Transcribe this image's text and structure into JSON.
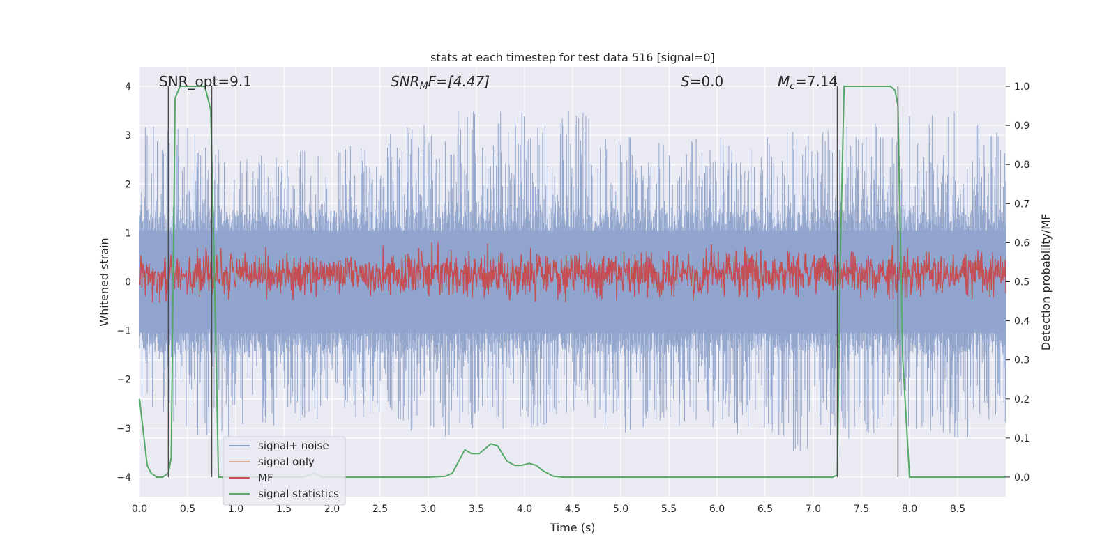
{
  "chart_data": {
    "type": "line",
    "title": "stats at each timestep for test data 516 [signal=0]",
    "xlabel": "Time (s)",
    "ylabel_left": "Whitened strain",
    "ylabel_right": "Detection probability/MF",
    "xlim": [
      0.0,
      9.0
    ],
    "ylim_left": [
      -4.4,
      4.4
    ],
    "ylim_right": [
      -0.05,
      1.05
    ],
    "xticks": [
      "0.0",
      "0.5",
      "1.0",
      "1.5",
      "2.0",
      "2.5",
      "3.0",
      "3.5",
      "4.0",
      "4.5",
      "5.0",
      "5.5",
      "6.0",
      "6.5",
      "7.0",
      "7.5",
      "8.0",
      "8.5"
    ],
    "xtick_values": [
      0,
      0.5,
      1,
      1.5,
      2,
      2.5,
      3,
      3.5,
      4,
      4.5,
      5,
      5.5,
      6,
      6.5,
      7,
      7.5,
      8,
      8.5
    ],
    "yticks_left": [
      "4",
      "3",
      "2",
      "1",
      "0",
      "−1",
      "−2",
      "−3",
      "−4"
    ],
    "ytick_values_left": [
      4,
      3,
      2,
      1,
      0,
      -1,
      -2,
      -3,
      -4
    ],
    "yticks_right": [
      "1.0",
      "0.9",
      "0.8",
      "0.7",
      "0.6",
      "0.5",
      "0.4",
      "0.3",
      "0.2",
      "0.1",
      "0.0"
    ],
    "ytick_values_right": [
      1.0,
      0.9,
      0.8,
      0.7,
      0.6,
      0.5,
      0.4,
      0.3,
      0.2,
      0.1,
      0.0
    ],
    "annotations": {
      "snr_opt": "SNR_opt=9.1",
      "snr_mf_main": "SNR",
      "snr_mf_sub": "M",
      "snr_mf_rest": "F=[4.47]",
      "s_main": "S",
      "s_rest": "=0.0",
      "mc_main": "M",
      "mc_sub": "c",
      "mc_rest": "=7.14"
    },
    "legend": {
      "placement": "lower-left",
      "entries": [
        {
          "label": "signal+ noise",
          "color": "#8da0cb"
        },
        {
          "label": "signal only",
          "color": "#e9a987"
        },
        {
          "label": "MF",
          "color": "#c44e52"
        },
        {
          "label": "signal statistics",
          "color": "#55a868"
        }
      ]
    },
    "noise_envelope": {
      "color": "#8fa3cc",
      "x": [
        0.0,
        0.5,
        1.0,
        1.5,
        2.0,
        2.5,
        3.0,
        3.3,
        3.5,
        4.0,
        4.5,
        5.0,
        5.5,
        6.0,
        6.5,
        6.8,
        7.0,
        7.5,
        8.0,
        8.5,
        9.0
      ],
      "upper": [
        3.2,
        3.2,
        2.5,
        2.7,
        2.8,
        3.0,
        3.3,
        3.6,
        3.7,
        3.5,
        3.6,
        3.0,
        2.9,
        3.0,
        3.0,
        3.3,
        3.2,
        3.3,
        3.4,
        3.6,
        3.0
      ],
      "lower": [
        -2.5,
        -3.1,
        -3.3,
        -2.9,
        -2.8,
        -2.8,
        -3.2,
        -3.2,
        -3.0,
        -3.1,
        -3.0,
        -3.2,
        -2.9,
        -3.2,
        -3.0,
        -3.7,
        -3.3,
        -3.2,
        -3.0,
        -3.4,
        -2.9
      ],
      "seed": 516,
      "samples": 1800
    },
    "mf_series": {
      "color": "#c44e52",
      "baseline": 0.52,
      "spread": 0.035,
      "seed": 99,
      "samples": 1800
    },
    "signal_statistics": {
      "color": "#55a868",
      "x": [
        0.0,
        0.08,
        0.12,
        0.18,
        0.24,
        0.3,
        0.33,
        0.37,
        0.42,
        0.5,
        0.6,
        0.68,
        0.74,
        0.78,
        0.82,
        0.9,
        1.0,
        1.2,
        1.5,
        1.7,
        1.82,
        1.9,
        2.0,
        2.5,
        3.0,
        3.18,
        3.25,
        3.38,
        3.45,
        3.53,
        3.65,
        3.72,
        3.82,
        3.9,
        3.97,
        4.05,
        4.12,
        4.2,
        4.3,
        4.4,
        4.6,
        5.0,
        6.0,
        6.8,
        7.2,
        7.25,
        7.28,
        7.32,
        7.4,
        7.8,
        7.85,
        7.88,
        7.93,
        7.96,
        8.0,
        8.2,
        8.5,
        9.0
      ],
      "y": [
        0.2,
        0.03,
        0.01,
        0.0,
        0.0,
        0.01,
        0.05,
        0.97,
        1.0,
        1.0,
        1.0,
        1.0,
        0.94,
        0.5,
        0.0,
        0.0,
        0.0,
        0.0,
        0.0,
        0.0,
        0.01,
        0.0,
        0.0,
        0.0,
        0.0,
        0.002,
        0.01,
        0.07,
        0.06,
        0.06,
        0.085,
        0.08,
        0.04,
        0.03,
        0.03,
        0.035,
        0.03,
        0.015,
        0.002,
        0.0,
        0.0,
        0.0,
        0.0,
        0.0,
        0.0,
        0.005,
        0.55,
        1.0,
        1.0,
        1.0,
        0.99,
        0.95,
        0.3,
        0.17,
        0.0,
        0.0,
        0.0,
        0.0
      ]
    },
    "vertical_markers": [
      0.3,
      0.75,
      7.25,
      7.88
    ],
    "marker_color": "#4a4a4a"
  }
}
